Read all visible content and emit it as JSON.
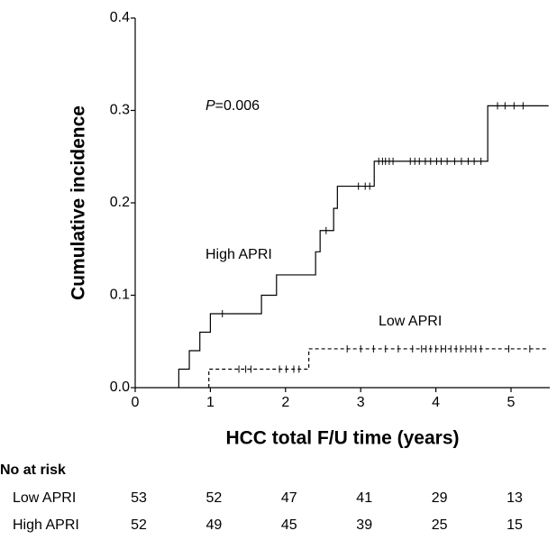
{
  "chart_data": {
    "type": "step",
    "ylabel": "Cumulative incidence",
    "xlabel": "HCC total F/U time (years)",
    "annotation": {
      "italic": "P",
      "text": "=0.006"
    },
    "xlim": [
      0,
      5.5
    ],
    "ylim": [
      0,
      0.4
    ],
    "xticks": [
      0,
      1,
      2,
      3,
      4,
      5
    ],
    "yticks": [
      {
        "value": 0,
        "label": "0.0"
      },
      0.1,
      0.2,
      0.3,
      0.4
    ],
    "series": [
      {
        "name": "High APRI",
        "color": "#000000",
        "dashed": false,
        "x": [
          0.58,
          0.58,
          0.72,
          0.86,
          1.0,
          1.68,
          1.88,
          2.4,
          2.46,
          2.64,
          2.69,
          3.18,
          4.69,
          5.5
        ],
        "values": [
          0,
          0.02,
          0.04,
          0.06,
          0.08,
          0.1,
          0.122,
          0.147,
          0.17,
          0.194,
          0.218,
          0.245,
          0.305,
          0.305
        ],
        "censored": [
          1.16,
          2.54,
          2.97,
          3.06,
          3.12,
          3.24,
          3.29,
          3.33,
          3.38,
          3.43,
          3.66,
          3.72,
          3.78,
          3.86,
          3.93,
          4.01,
          4.07,
          4.15,
          4.25,
          4.34,
          4.43,
          4.51,
          4.6,
          4.82,
          4.92,
          5.04,
          5.16
        ]
      },
      {
        "name": "Low APRI",
        "color": "#000000",
        "dashed": true,
        "x": [
          0.98,
          0.98,
          2.31,
          5.5
        ],
        "values": [
          0,
          0.02,
          0.042,
          0.042
        ],
        "censored": [
          1.38,
          1.47,
          1.54,
          1.92,
          2.01,
          2.11,
          2.18,
          2.82,
          3.0,
          3.17,
          3.33,
          3.5,
          3.69,
          3.81,
          3.87,
          3.93,
          4.0,
          4.07,
          4.13,
          4.2,
          4.27,
          4.33,
          4.4,
          4.47,
          4.53,
          4.6,
          4.97,
          5.25
        ]
      }
    ],
    "risk_table": {
      "title": "No at risk",
      "rows": [
        {
          "name": "Low APRI",
          "values": [
            53,
            52,
            47,
            41,
            29,
            13
          ]
        },
        {
          "name": "High APRI",
          "values": [
            52,
            49,
            45,
            39,
            25,
            15
          ]
        }
      ]
    }
  }
}
